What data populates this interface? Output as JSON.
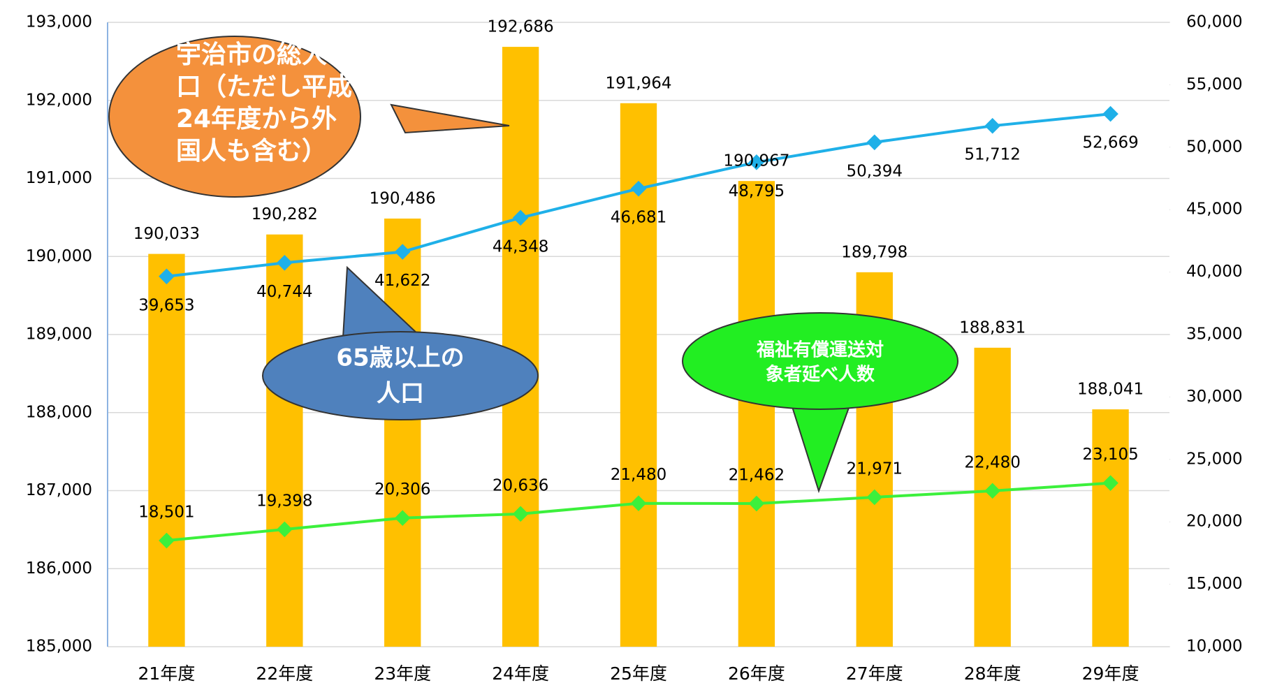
{
  "chart_data": {
    "type": "bar_line",
    "categories": [
      "21年度",
      "22年度",
      "23年度",
      "24年度",
      "25年度",
      "26年度",
      "27年度",
      "28年度",
      "29年度"
    ],
    "series": [
      {
        "type": "bar",
        "color": "#ffc000",
        "axis": "y",
        "values": [
          190033,
          190282,
          190486,
          192686,
          191964,
          190967,
          189798,
          188831,
          188041
        ],
        "value_labels": [
          "190,033",
          "190,282",
          "190,486",
          "192,686",
          "191,964",
          "190,967",
          "189,798",
          "188,831",
          "188,041"
        ]
      },
      {
        "type": "line",
        "color": "#1fb0e8",
        "axis": "y2",
        "values": [
          39653,
          40744,
          41622,
          44348,
          46681,
          48795,
          50394,
          51712,
          52669
        ],
        "value_labels": [
          "39,653",
          "40,744",
          "41,622",
          "44,348",
          "46,681",
          "48,795",
          "50,394",
          "51,712",
          "52,669"
        ]
      },
      {
        "type": "line",
        "color": "#3cf03c",
        "axis": "y2",
        "values": [
          18501,
          19398,
          20306,
          20636,
          21480,
          21462,
          21971,
          22480,
          23105
        ],
        "value_labels": [
          "18,501",
          "19,398",
          "20,306",
          "20,636",
          "21,480",
          "21,462",
          "21,971",
          "22,480",
          "23,105"
        ]
      }
    ],
    "ylim": [
      185000,
      193000
    ],
    "yticks": [
      {
        "value": 185000,
        "label": "185,000"
      },
      {
        "value": 186000,
        "label": "186,000"
      },
      {
        "value": 187000,
        "label": "187,000"
      },
      {
        "value": 188000,
        "label": "188,000"
      },
      {
        "value": 189000,
        "label": "189,000"
      },
      {
        "value": 190000,
        "label": "190,000"
      },
      {
        "value": 191000,
        "label": "191,000"
      },
      {
        "value": 192000,
        "label": "192,000"
      },
      {
        "value": 193000,
        "label": "193,000"
      }
    ],
    "y2lim": [
      10000,
      60000
    ],
    "y2ticks": [
      {
        "value": 10000,
        "label": "10,000"
      },
      {
        "value": 15000,
        "label": "15,000"
      },
      {
        "value": 20000,
        "label": "20,000"
      },
      {
        "value": 25000,
        "label": "25,000"
      },
      {
        "value": 30000,
        "label": "30,000"
      },
      {
        "value": 35000,
        "label": "35,000"
      },
      {
        "value": 40000,
        "label": "40,000"
      },
      {
        "value": 45000,
        "label": "45,000"
      },
      {
        "value": 50000,
        "label": "50,000"
      },
      {
        "value": 55000,
        "label": "55,000"
      },
      {
        "value": 60000,
        "label": "60,000"
      }
    ],
    "grid": true,
    "annotations": [
      {
        "lines": [
          "宇治市の総人",
          "口（ただし平成",
          "24年度から外",
          "国人も含む）"
        ]
      },
      {
        "lines": [
          "65歳以上の",
          "人口"
        ]
      },
      {
        "lines": [
          "福祉有償運送対",
          "象者延べ人数"
        ]
      }
    ]
  }
}
